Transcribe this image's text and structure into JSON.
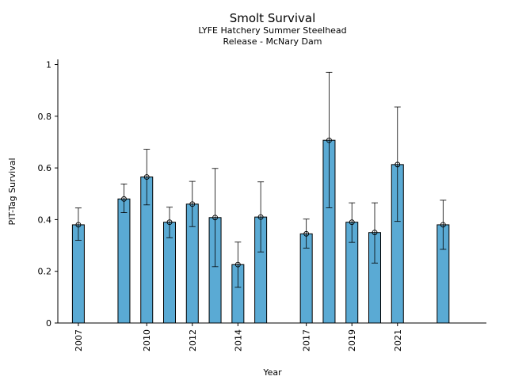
{
  "chart_data": {
    "type": "bar",
    "title": "Smolt Survival",
    "subtitle_lines": [
      "LYFE Hatchery Summer Steelhead",
      "Release - McNary Dam"
    ],
    "xlabel": "Year",
    "ylabel": "PIT-Tag Survival",
    "ylim": [
      0,
      1.02
    ],
    "xlim": [
      2006.1,
      2024.9
    ],
    "y_ticks": [
      0,
      0.2,
      0.4,
      0.6,
      0.8,
      1
    ],
    "y_tick_labels": [
      "0",
      "0.2",
      "0.4",
      "0.6",
      "0.8",
      "1"
    ],
    "x_ticks": [
      2007,
      2010,
      2012,
      2014,
      2017,
      2019,
      2021
    ],
    "x_tick_labels": [
      "2007",
      "2010",
      "2012",
      "2014",
      "2017",
      "2019",
      "2021"
    ],
    "grid": false,
    "colors": {
      "bar_fill": "#5aaad4",
      "bar_edge": "#000000",
      "error_bar": "#000000"
    },
    "points": [
      {
        "year": 2007,
        "value": 0.38,
        "lower": 0.32,
        "upper": 0.445
      },
      {
        "year": 2009,
        "value": 0.48,
        "lower": 0.427,
        "upper": 0.538
      },
      {
        "year": 2010,
        "value": 0.565,
        "lower": 0.457,
        "upper": 0.672
      },
      {
        "year": 2011,
        "value": 0.39,
        "lower": 0.33,
        "upper": 0.448
      },
      {
        "year": 2012,
        "value": 0.46,
        "lower": 0.373,
        "upper": 0.548
      },
      {
        "year": 2013,
        "value": 0.408,
        "lower": 0.218,
        "upper": 0.598
      },
      {
        "year": 2014,
        "value": 0.226,
        "lower": 0.138,
        "upper": 0.313
      },
      {
        "year": 2015,
        "value": 0.41,
        "lower": 0.275,
        "upper": 0.546
      },
      {
        "year": 2017,
        "value": 0.345,
        "lower": 0.29,
        "upper": 0.402
      },
      {
        "year": 2018,
        "value": 0.707,
        "lower": 0.446,
        "upper": 0.97
      },
      {
        "year": 2019,
        "value": 0.39,
        "lower": 0.312,
        "upper": 0.465
      },
      {
        "year": 2020,
        "value": 0.35,
        "lower": 0.232,
        "upper": 0.465
      },
      {
        "year": 2021,
        "value": 0.613,
        "lower": 0.393,
        "upper": 0.836
      },
      {
        "year": 2023,
        "value": 0.38,
        "lower": 0.285,
        "upper": 0.475
      }
    ]
  }
}
